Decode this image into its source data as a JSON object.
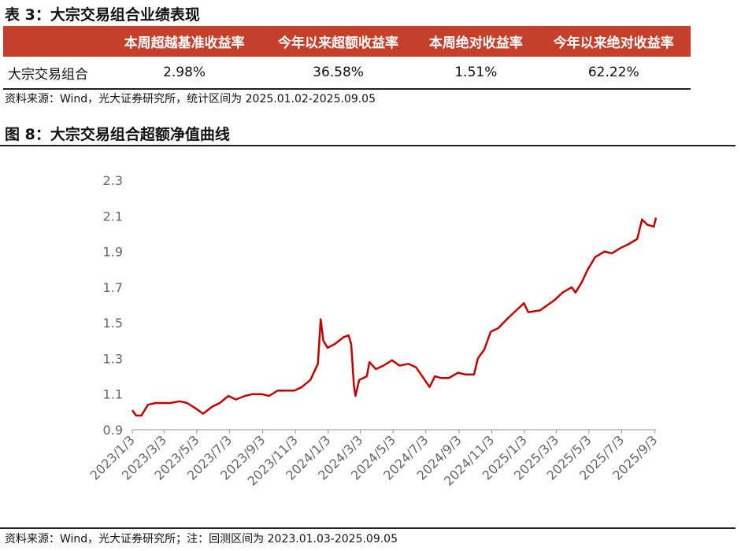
{
  "table": {
    "title": "表 3：大宗交易组合业绩表现",
    "header": [
      "",
      "本周超越基准收益率",
      "今年以来超额收益率",
      "本周绝对收益率",
      "今年以来绝对收益率"
    ],
    "rows": [
      [
        "大宗交易组合",
        "2.98%",
        "36.58%",
        "1.51%",
        "62.22%"
      ]
    ],
    "source": "资料来源：Wind，光大证券研究所，统计区间为 2025.01.02-2025.09.05"
  },
  "chart_data": {
    "type": "line",
    "title": "图 8：大宗交易组合超额净值曲线",
    "source": "资料来源：Wind，光大证券研究所；注：回测区间为 2023.01.03-2025.09.05",
    "x": [
      "2023/1/3",
      "2023/1/10",
      "2023/1/20",
      "2023/2/1",
      "2023/2/15",
      "2023/3/1",
      "2023/3/15",
      "2023/4/1",
      "2023/4/15",
      "2023/5/1",
      "2023/5/15",
      "2023/6/1",
      "2023/6/15",
      "2023/7/1",
      "2023/7/15",
      "2023/8/1",
      "2023/8/15",
      "2023/9/1",
      "2023/9/15",
      "2023/10/1",
      "2023/10/15",
      "2023/11/1",
      "2023/11/15",
      "2023/12/1",
      "2023/12/15",
      "2023/12/20",
      "2023/12/25",
      "2024/1/2",
      "2024/1/15",
      "2024/2/1",
      "2024/2/10",
      "2024/2/15",
      "2024/2/20",
      "2024/2/23",
      "2024/3/1",
      "2024/3/15",
      "2024/3/20",
      "2024/4/1",
      "2024/4/15",
      "2024/5/1",
      "2024/5/15",
      "2024/6/1",
      "2024/6/15",
      "2024/7/1",
      "2024/7/10",
      "2024/7/20",
      "2024/8/1",
      "2024/8/15",
      "2024/9/1",
      "2024/9/15",
      "2024/10/1",
      "2024/10/8",
      "2024/10/20",
      "2024/11/1",
      "2024/11/15",
      "2024/12/1",
      "2024/12/15",
      "2025/1/2",
      "2025/1/10",
      "2025/2/1",
      "2025/2/15",
      "2025/3/1",
      "2025/3/15",
      "2025/4/1",
      "2025/4/8",
      "2025/4/20",
      "2025/5/1",
      "2025/5/15",
      "2025/6/1",
      "2025/6/15",
      "2025/7/1",
      "2025/7/15",
      "2025/8/1",
      "2025/8/10",
      "2025/8/20",
      "2025/9/1",
      "2025/9/5"
    ],
    "series": [
      {
        "name": "大宗交易组合",
        "color": "#c00000",
        "values": [
          1.01,
          0.98,
          0.98,
          1.04,
          1.05,
          1.05,
          1.05,
          1.06,
          1.05,
          1.02,
          0.99,
          1.03,
          1.05,
          1.09,
          1.07,
          1.09,
          1.1,
          1.1,
          1.09,
          1.12,
          1.12,
          1.12,
          1.14,
          1.18,
          1.27,
          1.52,
          1.4,
          1.36,
          1.38,
          1.42,
          1.43,
          1.38,
          1.15,
          1.09,
          1.18,
          1.2,
          1.28,
          1.24,
          1.26,
          1.29,
          1.26,
          1.27,
          1.25,
          1.18,
          1.14,
          1.2,
          1.19,
          1.19,
          1.22,
          1.21,
          1.21,
          1.3,
          1.35,
          1.45,
          1.47,
          1.52,
          1.56,
          1.61,
          1.56,
          1.57,
          1.6,
          1.63,
          1.67,
          1.7,
          1.67,
          1.73,
          1.8,
          1.87,
          1.9,
          1.89,
          1.92,
          1.94,
          1.97,
          2.08,
          2.05,
          2.04,
          2.09
        ]
      }
    ],
    "xlim": [
      "2023/1/3",
      "2025/9/5"
    ],
    "xticks": [
      "2023/1/3",
      "2023/3/3",
      "2023/5/3",
      "2023/7/3",
      "2023/9/3",
      "2023/11/3",
      "2024/1/3",
      "2024/3/3",
      "2024/5/3",
      "2024/7/3",
      "2024/9/3",
      "2024/11/3",
      "2025/1/3",
      "2025/3/3",
      "2025/5/3",
      "2025/7/3",
      "2025/9/3"
    ],
    "ylim": [
      0.9,
      2.3
    ],
    "yticks": [
      0.9,
      1.1,
      1.3,
      1.5,
      1.7,
      1.9,
      2.1,
      2.3
    ]
  }
}
